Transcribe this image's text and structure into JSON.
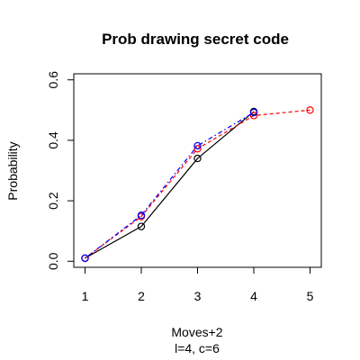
{
  "chart_data": {
    "type": "line",
    "title": "Prob drawing secret code",
    "xlabel": "Moves+2",
    "sublabel": "l=4, c=6",
    "ylabel": "Probability",
    "x_ticks": [
      "1",
      "2",
      "3",
      "4",
      "5"
    ],
    "y_ticks": [
      "0.0",
      "0.2",
      "0.4",
      "0.6"
    ],
    "xlim": [
      0.8,
      5.2
    ],
    "ylim": [
      -0.02,
      0.62
    ],
    "grid": false,
    "series": [
      {
        "color": "#000000",
        "line": "solid",
        "marker": "open-circle",
        "x": [
          1,
          2,
          3,
          4
        ],
        "y": [
          0.01,
          0.115,
          0.34,
          0.495
        ]
      },
      {
        "color": "#ff0000",
        "line": "dashed",
        "marker": "open-circle",
        "x": [
          1,
          2,
          3,
          4,
          5
        ],
        "y": [
          0.01,
          0.148,
          0.372,
          0.482,
          0.5
        ]
      },
      {
        "color": "#0000ff",
        "line": "dotdash",
        "marker": "open-circle",
        "x": [
          1,
          2,
          3,
          4
        ],
        "y": [
          0.01,
          0.152,
          0.382,
          0.492
        ]
      }
    ]
  }
}
